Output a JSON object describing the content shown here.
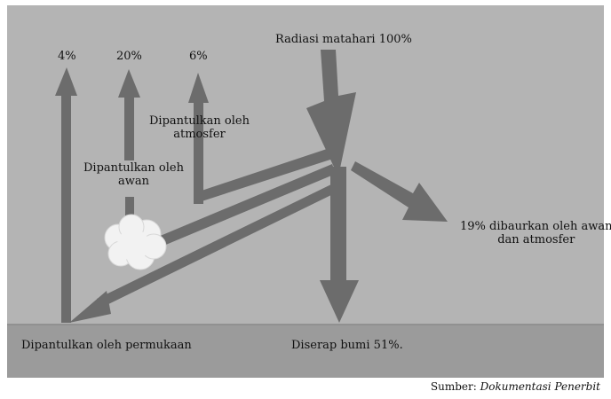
{
  "diagram": {
    "incoming_label": "Radiasi matahari 100%",
    "pct_surface": "4%",
    "pct_clouds": "20%",
    "pct_atmosphere": "6%",
    "label_atmosphere": [
      "Dipantulkan oleh",
      "atmosfer"
    ],
    "label_clouds": [
      "Dipantulkan oleh",
      "awan"
    ],
    "label_scattered": [
      "19% dibaurkan oleh awan",
      "dan atmosfer"
    ],
    "label_surface": "Dipantulkan oleh permukaan",
    "label_absorbed": "Diserap bumi 51%."
  },
  "source": {
    "prefix": "Sumber:",
    "text": "Dokumentasi Penerbit"
  },
  "colors": {
    "sky": "#b4b4b4",
    "ground": "#9b9b9b",
    "arrow": "#6c6c6c",
    "cloud": "#f2f2f2"
  }
}
